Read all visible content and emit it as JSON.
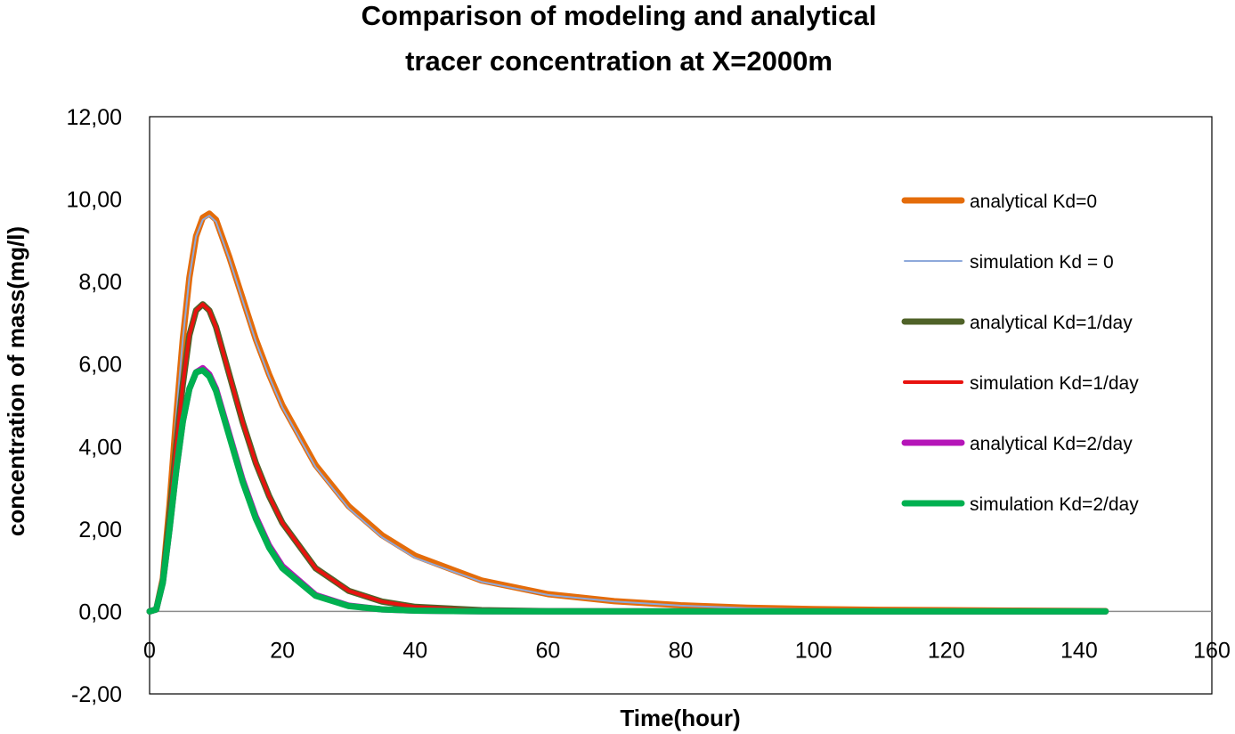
{
  "chart_data": {
    "type": "line",
    "title_lines": [
      "Comparison of modeling and analytical",
      "tracer concentration at X=2000m"
    ],
    "xlabel": "Time(hour)",
    "ylabel": "concentration of mass(mg/l)",
    "xlim": [
      0,
      160
    ],
    "ylim": [
      -2,
      12
    ],
    "x_ticks": [
      "0",
      "20",
      "40",
      "60",
      "80",
      "100",
      "120",
      "140",
      "160"
    ],
    "y_ticks": [
      "-2,00",
      "0,00",
      "2,00",
      "4,00",
      "6,00",
      "8,00",
      "10,00",
      "12,00"
    ],
    "legend_position": "right",
    "series": [
      {
        "name": "analytical Kd=0",
        "color": "#E46C0A",
        "style": "thick",
        "x": [
          0,
          1,
          2,
          3,
          4,
          5,
          6,
          7,
          8,
          9,
          10,
          12,
          14,
          16,
          18,
          20,
          25,
          30,
          35,
          40,
          50,
          60,
          70,
          80,
          90,
          100,
          110,
          120,
          130,
          144
        ],
        "y": [
          0,
          0.05,
          0.8,
          2.6,
          4.7,
          6.6,
          8.1,
          9.1,
          9.55,
          9.65,
          9.5,
          8.6,
          7.6,
          6.6,
          5.75,
          5.0,
          3.55,
          2.55,
          1.85,
          1.35,
          0.75,
          0.42,
          0.25,
          0.15,
          0.09,
          0.06,
          0.04,
          0.03,
          0.02,
          0.01
        ]
      },
      {
        "name": "simulation Kd = 0",
        "color": "#8EA9DB",
        "style": "thin",
        "x": [
          0,
          1,
          2,
          3,
          4,
          5,
          6,
          7,
          8,
          9,
          10,
          12,
          14,
          16,
          18,
          20,
          25,
          30,
          35,
          40,
          50,
          60,
          70,
          80,
          90,
          100,
          110,
          120,
          130,
          144
        ],
        "y": [
          0,
          0.05,
          0.8,
          2.6,
          4.7,
          6.6,
          8.1,
          9.1,
          9.5,
          9.6,
          9.45,
          8.55,
          7.55,
          6.55,
          5.7,
          4.95,
          3.5,
          2.5,
          1.8,
          1.3,
          0.72,
          0.4,
          0.24,
          0.14,
          0.08,
          0.05,
          0.03,
          0.02,
          0.015,
          0.01
        ]
      },
      {
        "name": "analytical Kd=1/day",
        "color": "#4F6228",
        "style": "thick",
        "x": [
          0,
          1,
          2,
          3,
          4,
          5,
          6,
          7,
          8,
          9,
          10,
          12,
          14,
          16,
          18,
          20,
          25,
          30,
          35,
          40,
          50,
          60,
          70,
          80,
          100,
          120,
          144
        ],
        "y": [
          0,
          0.05,
          0.75,
          2.3,
          4.0,
          5.5,
          6.7,
          7.3,
          7.45,
          7.3,
          6.9,
          5.75,
          4.6,
          3.6,
          2.8,
          2.15,
          1.05,
          0.5,
          0.24,
          0.11,
          0.03,
          0.008,
          0.002,
          0,
          0,
          0,
          0
        ]
      },
      {
        "name": "simulation Kd=1/day",
        "color": "#E8120F",
        "style": "medium",
        "x": [
          0,
          1,
          2,
          3,
          4,
          5,
          6,
          7,
          8,
          9,
          10,
          12,
          14,
          16,
          18,
          20,
          25,
          30,
          35,
          40,
          50,
          60,
          70,
          80,
          100,
          120,
          144
        ],
        "y": [
          0,
          0.05,
          0.75,
          2.3,
          4.0,
          5.5,
          6.7,
          7.3,
          7.45,
          7.3,
          6.9,
          5.75,
          4.6,
          3.6,
          2.8,
          2.15,
          1.05,
          0.5,
          0.24,
          0.11,
          0.03,
          0.008,
          0.002,
          0,
          0,
          0,
          0
        ]
      },
      {
        "name": "analytical Kd=2/day",
        "color": "#B515B8",
        "style": "thick",
        "x": [
          0,
          1,
          2,
          3,
          4,
          5,
          6,
          7,
          8,
          9,
          10,
          12,
          14,
          16,
          18,
          20,
          25,
          30,
          35,
          40,
          50,
          60,
          80,
          100,
          120,
          144
        ],
        "y": [
          0,
          0.05,
          0.7,
          2.0,
          3.4,
          4.6,
          5.4,
          5.8,
          5.9,
          5.75,
          5.4,
          4.3,
          3.2,
          2.3,
          1.6,
          1.1,
          0.4,
          0.14,
          0.05,
          0.02,
          0.003,
          0,
          0,
          0,
          0,
          0
        ]
      },
      {
        "name": "simulation Kd=2/day",
        "color": "#00B050",
        "style": "thick",
        "x": [
          0,
          1,
          2,
          3,
          4,
          5,
          6,
          7,
          8,
          9,
          10,
          12,
          14,
          16,
          18,
          20,
          25,
          30,
          35,
          40,
          50,
          60,
          80,
          100,
          120,
          144
        ],
        "y": [
          0,
          0.05,
          0.7,
          2.0,
          3.4,
          4.6,
          5.4,
          5.8,
          5.85,
          5.7,
          5.35,
          4.25,
          3.15,
          2.25,
          1.55,
          1.05,
          0.38,
          0.13,
          0.05,
          0.02,
          0.003,
          0,
          0,
          0,
          0,
          0
        ]
      }
    ]
  }
}
